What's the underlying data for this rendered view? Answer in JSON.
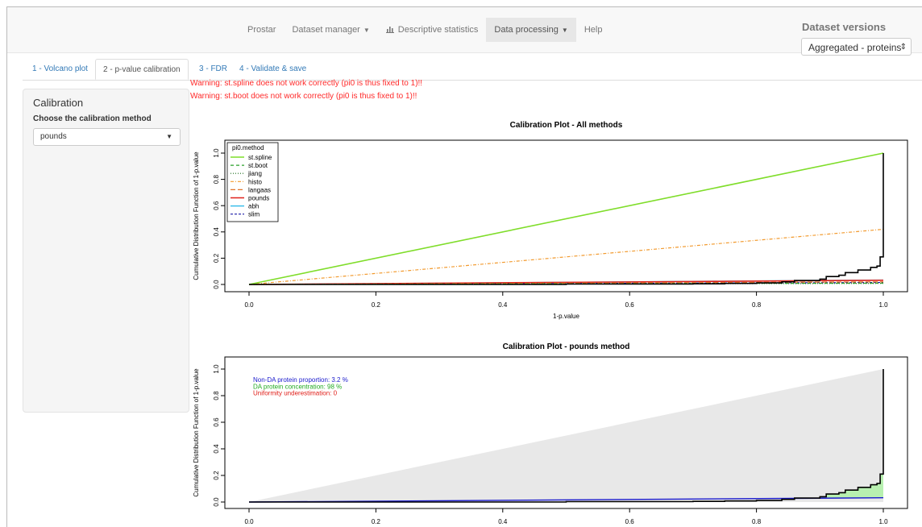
{
  "navbar": {
    "brand": "Prostar",
    "menu": [
      {
        "label": "Dataset manager",
        "caret": true
      },
      {
        "label": "Descriptive statistics",
        "icon": "bar-chart-icon"
      },
      {
        "label": "Data processing",
        "caret": true,
        "active": true
      },
      {
        "label": "Help"
      }
    ],
    "dataset_versions_title": "Dataset versions",
    "dataset_version_selected": "Aggregated - proteins"
  },
  "tabs": [
    "1 - Volcano plot",
    "2 - p-value calibration",
    "3 - FDR",
    "4 - Validate & save"
  ],
  "active_tab": 1,
  "sidebar": {
    "title": "Calibration",
    "method_label": "Choose the calibration method",
    "method_value": "pounds"
  },
  "warnings": [
    "Warning: st.spline does not work correctly (pi0 is thus fixed to 1)!!",
    "Warning: st.boot does not work correctly (pi0 is thus fixed to 1)!!"
  ],
  "chart_data": [
    {
      "type": "line",
      "title": "Calibration Plot - All methods",
      "xlabel": "1-p.value",
      "ylabel": "Cumulative Distribution Function of 1-p.value",
      "xlim": [
        0,
        1
      ],
      "ylim": [
        0,
        1
      ],
      "xticks": [
        "0.0",
        "0.2",
        "0.4",
        "0.6",
        "0.8",
        "1.0"
      ],
      "yticks": [
        "0.0",
        "0.2",
        "0.4",
        "0.6",
        "0.8",
        "1.0"
      ],
      "legend_title": "pi0.method",
      "legend_position": "top-left",
      "ecdf": {
        "color": "#000000",
        "x": [
          0,
          0.5,
          0.7,
          0.75,
          0.8,
          0.84,
          0.86,
          0.9,
          0.91,
          0.93,
          0.94,
          0.96,
          0.98,
          0.99,
          0.995,
          1,
          1
        ],
        "y": [
          0,
          0.003,
          0.005,
          0.008,
          0.012,
          0.02,
          0.03,
          0.04,
          0.06,
          0.07,
          0.09,
          0.11,
          0.13,
          0.14,
          0.21,
          0.22,
          1.0
        ]
      },
      "series": [
        {
          "name": "st.spline",
          "color": "#7fdd2a",
          "dash": "",
          "width": 1.6,
          "slope": 1.0
        },
        {
          "name": "st.boot",
          "color": "#2aa12a",
          "dash": "4,3",
          "width": 1.2,
          "slope": 0.01
        },
        {
          "name": "jiang",
          "color": "#1a6b1a",
          "dash": "1,2",
          "width": 1.2,
          "slope": 0.008
        },
        {
          "name": "histo",
          "color": "#f29a2e",
          "dash": "4,2,1,2",
          "width": 1.2,
          "slope": 0.42
        },
        {
          "name": "langaas",
          "color": "#e0742a",
          "dash": "6,3",
          "width": 1.2,
          "slope": 0.02
        },
        {
          "name": "pounds",
          "color": "#e0201a",
          "dash": "",
          "width": 1.6,
          "slope": 0.032
        },
        {
          "name": "abh",
          "color": "#21b5e8",
          "dash": "",
          "width": 1.2,
          "slope": 0.034
        },
        {
          "name": "slim",
          "color": "#1a1aa8",
          "dash": "3,2",
          "width": 1.2,
          "slope": 0.015
        }
      ]
    },
    {
      "type": "area",
      "title": "Calibration Plot - pounds method",
      "xlabel": "",
      "ylabel": "Cumulative Distribution Function of 1-p.value",
      "xlim": [
        0,
        1
      ],
      "ylim": [
        0,
        1
      ],
      "xticks": [
        "0.0",
        "0.2",
        "0.4",
        "0.6",
        "0.8",
        "1.0"
      ],
      "yticks": [
        "0.0",
        "0.2",
        "0.4",
        "0.6",
        "0.8",
        "1.0"
      ],
      "annotations": [
        {
          "text": "Non-DA protein proportion:  3.2 %",
          "color": "#1a1acc"
        },
        {
          "text": "DA protein concentration:  98 %",
          "color": "#22aa22"
        },
        {
          "text": "Uniformity underestimation:  0",
          "color": "#e0201a"
        }
      ],
      "pi0_slope": 0.032,
      "colors": {
        "uniform_area": "#e8e8e8",
        "da_area": "#b8f0b0",
        "pi0_line": "#1a1acc",
        "ecdf": "#000000"
      }
    }
  ]
}
